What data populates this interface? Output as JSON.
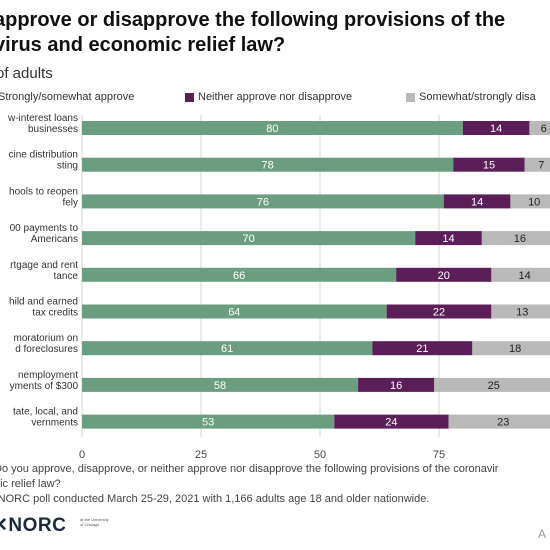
{
  "title_line1": "approve or disapprove the following provisions of the",
  "title_line2": "virus and economic relief law?",
  "subtitle": "of adults",
  "legend": [
    {
      "label": "Strongly/somewhat approve",
      "color": "#6b9e80"
    },
    {
      "label": "Neither approve nor disapprove",
      "color": "#5c1e58"
    },
    {
      "label": "Somewhat/strongly disa",
      "color": "#b9b9b9"
    }
  ],
  "notes": {
    "line1": "Do you approve, disapprove, or neither approve nor disapprove the following provisions of the coronavir",
    "line2": "nic relief law?",
    "line3": "-NORC poll conducted March 25-29, 2021 with 1,166 adults age 18 and older nationwide."
  },
  "logo": {
    "text": "✕NORC",
    "small": "at the University of Chicago"
  },
  "credit": "A",
  "chart_data": {
    "type": "bar",
    "orientation": "horizontal",
    "stacked": true,
    "categories": [
      [
        "w-interest loans",
        "businesses"
      ],
      [
        "cine distribution",
        "sting"
      ],
      [
        "hools to reopen",
        "fely"
      ],
      [
        "00 payments to",
        "Americans"
      ],
      [
        "rtgage and rent",
        "tance"
      ],
      [
        "hild and earned",
        "tax credits"
      ],
      [
        "moratorium on",
        "d foreclosures"
      ],
      [
        "nemployment",
        "yments of $300"
      ],
      [
        "tate, local, and",
        "vernments"
      ]
    ],
    "series": [
      {
        "name": "Strongly/somewhat approve",
        "color": "#6b9e80",
        "values": [
          80,
          78,
          76,
          70,
          66,
          64,
          61,
          58,
          53
        ]
      },
      {
        "name": "Neither approve nor disapprove",
        "color": "#5c1e58",
        "values": [
          14,
          15,
          14,
          14,
          20,
          22,
          21,
          16,
          24
        ]
      },
      {
        "name": "Somewhat/strongly disa",
        "color": "#b9b9b9",
        "values": [
          6,
          7,
          10,
          16,
          14,
          13,
          18,
          25,
          23
        ]
      }
    ],
    "xticks": [
      0,
      25,
      50,
      75
    ],
    "xlim": [
      0,
      100
    ],
    "grid": true
  }
}
